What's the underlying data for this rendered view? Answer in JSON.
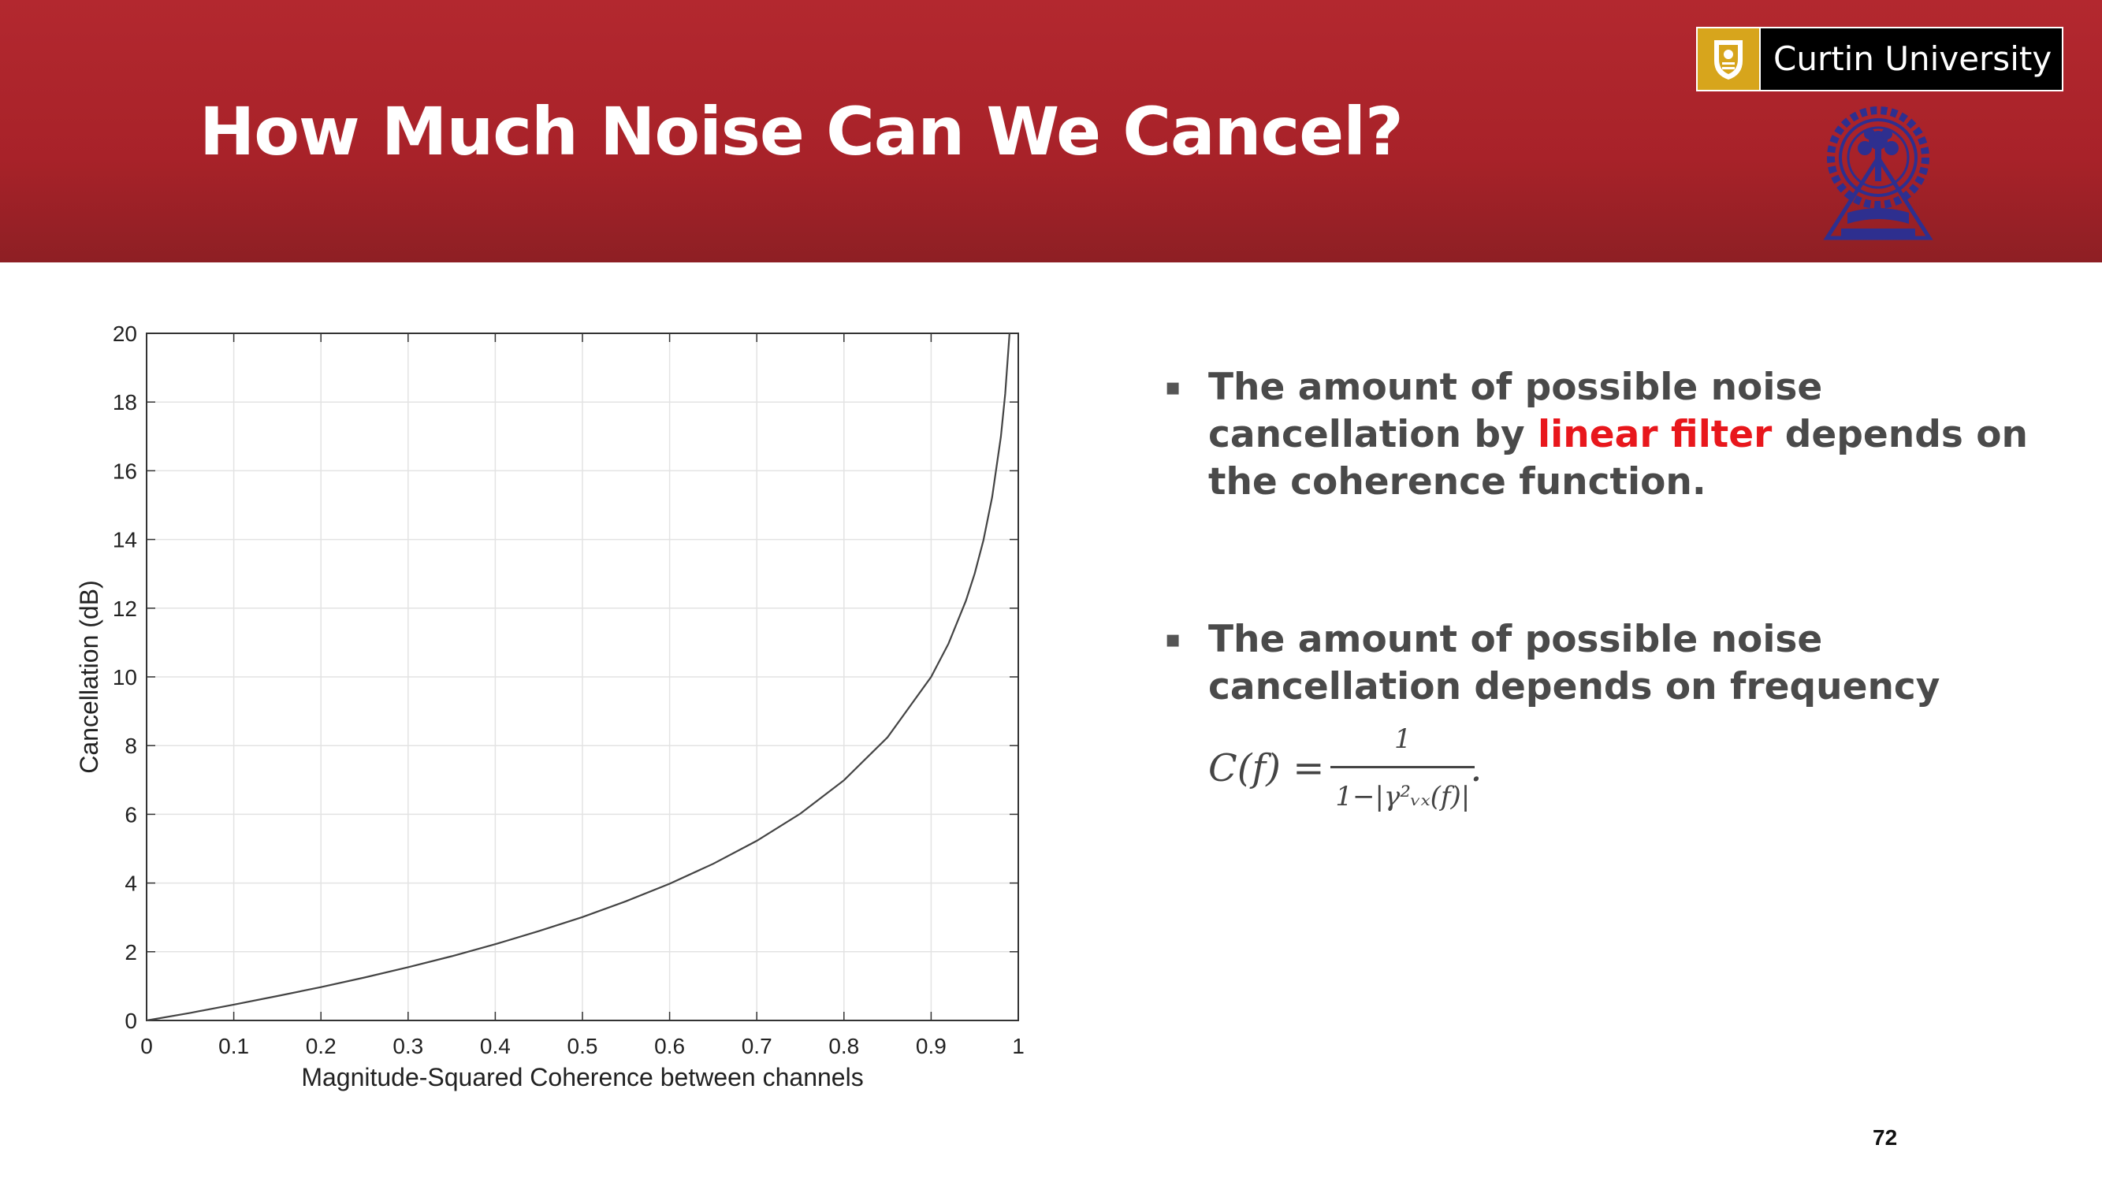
{
  "header": {
    "title": "How Much Noise Can We Cancel?",
    "curtin_logo_text": "Curtin University",
    "accent_color": "#b3282f",
    "curtin_gold": "#d7a51c",
    "seal_color": "#2e2f8f"
  },
  "bullets": [
    {
      "pre": "The amount of possible noise cancellation by ",
      "highlight": "linear filter",
      "post": " depends on the coherence function."
    },
    {
      "text": "The amount of possible noise cancellation depends on frequency",
      "formula_lhs": "C(f) =",
      "formula_num": "1",
      "formula_den": "1−|γ²ᵥₓ(f)|",
      "formula_tail": "."
    }
  ],
  "page_number": "72",
  "chart_data": {
    "type": "line",
    "title": "",
    "xlabel": "Magnitude-Squared Coherence between channels",
    "ylabel": "Cancellation (dB)",
    "xlim": [
      0,
      1
    ],
    "ylim": [
      0,
      20
    ],
    "xticks": [
      0,
      0.1,
      0.2,
      0.3,
      0.4,
      0.5,
      0.6,
      0.7,
      0.8,
      0.9,
      1
    ],
    "yticks": [
      0,
      2,
      4,
      6,
      8,
      10,
      12,
      14,
      16,
      18,
      20
    ],
    "grid": true,
    "legend": "none",
    "series": [
      {
        "x": [
          0,
          0.05,
          0.1,
          0.15,
          0.2,
          0.25,
          0.3,
          0.35,
          0.4,
          0.45,
          0.5,
          0.55,
          0.6,
          0.65,
          0.7,
          0.75,
          0.8,
          0.85,
          0.9,
          0.92,
          0.94,
          0.95,
          0.96,
          0.97,
          0.98,
          0.985,
          0.99
        ],
        "y": [
          0,
          0.22,
          0.46,
          0.71,
          0.97,
          1.25,
          1.55,
          1.87,
          2.22,
          2.6,
          3.01,
          3.47,
          3.98,
          4.56,
          5.23,
          6.02,
          6.99,
          8.24,
          10,
          10.97,
          12.22,
          13.01,
          13.98,
          15.23,
          16.99,
          18.24,
          20
        ]
      }
    ]
  }
}
